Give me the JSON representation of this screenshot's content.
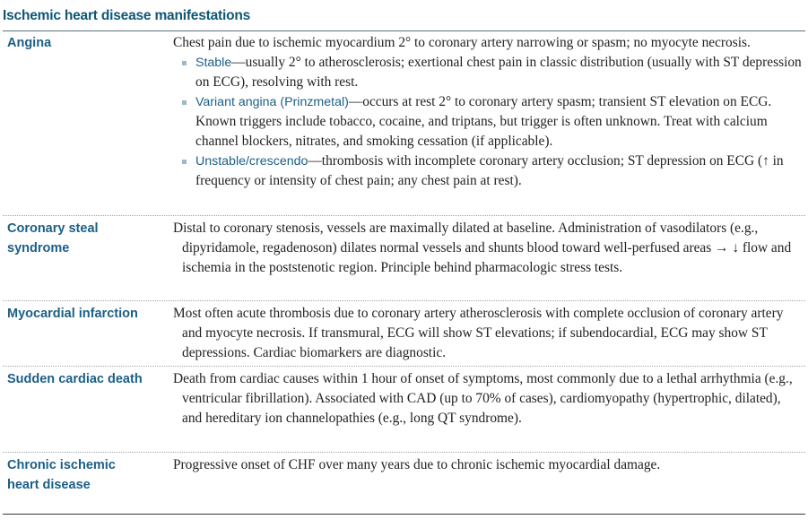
{
  "title": "Ischemic heart disease manifestations",
  "rows": [
    {
      "term": "Angina",
      "intro": "Chest pain due to ischemic myocardium 2° to coronary artery narrowing or spasm; no myocyte necrosis.",
      "bullets": [
        {
          "term": "Stable",
          "text": "—usually 2° to atherosclerosis; exertional chest pain in classic distribution (usually with ST depression on ECG), resolving with rest."
        },
        {
          "term": "Variant angina (Prinzmetal)",
          "text": "—occurs at rest 2° to coronary artery spasm; transient ST elevation on ECG. Known triggers include tobacco, cocaine, and triptans, but trigger is often unknown. Treat with calcium channel blockers, nitrates, and smoking cessation (if applicable)."
        },
        {
          "term": "Unstable/crescendo",
          "text": "—thrombosis with incomplete coronary artery occlusion; ST depression on ECG (↑ in frequency or intensity of chest pain; any chest pain at rest)."
        }
      ]
    },
    {
      "term": "Coronary steal syndrome",
      "text": "Distal to coronary stenosis, vessels are maximally dilated at baseline. Administration of vasodilators (e.g., dipyridamole, regadenoson) dilates normal vessels and shunts blood toward well-perfused areas → ↓ flow and ischemia in the poststenotic region. Principle behind pharmacologic stress tests."
    },
    {
      "term": "Myocardial infarction",
      "text": "Most often acute thrombosis due to coronary artery atherosclerosis with complete occlusion of coronary artery and myocyte necrosis. If transmural, ECG will show ST elevations; if subendocardial, ECG may show ST depressions. Cardiac biomarkers are diagnostic."
    },
    {
      "term": "Sudden cardiac death",
      "text": "Death from cardiac causes within 1 hour of onset of symptoms, most commonly due to a lethal arrhythmia (e.g., ventricular fibrillation). Associated with CAD (up to 70% of cases), cardiomyopathy (hypertrophic, dilated), and hereditary ion channelopathies (e.g., long QT syndrome)."
    },
    {
      "term": "Chronic ischemic heart disease",
      "text": "Progressive onset of CHF over many years due to chronic ischemic myocardial damage."
    }
  ]
}
